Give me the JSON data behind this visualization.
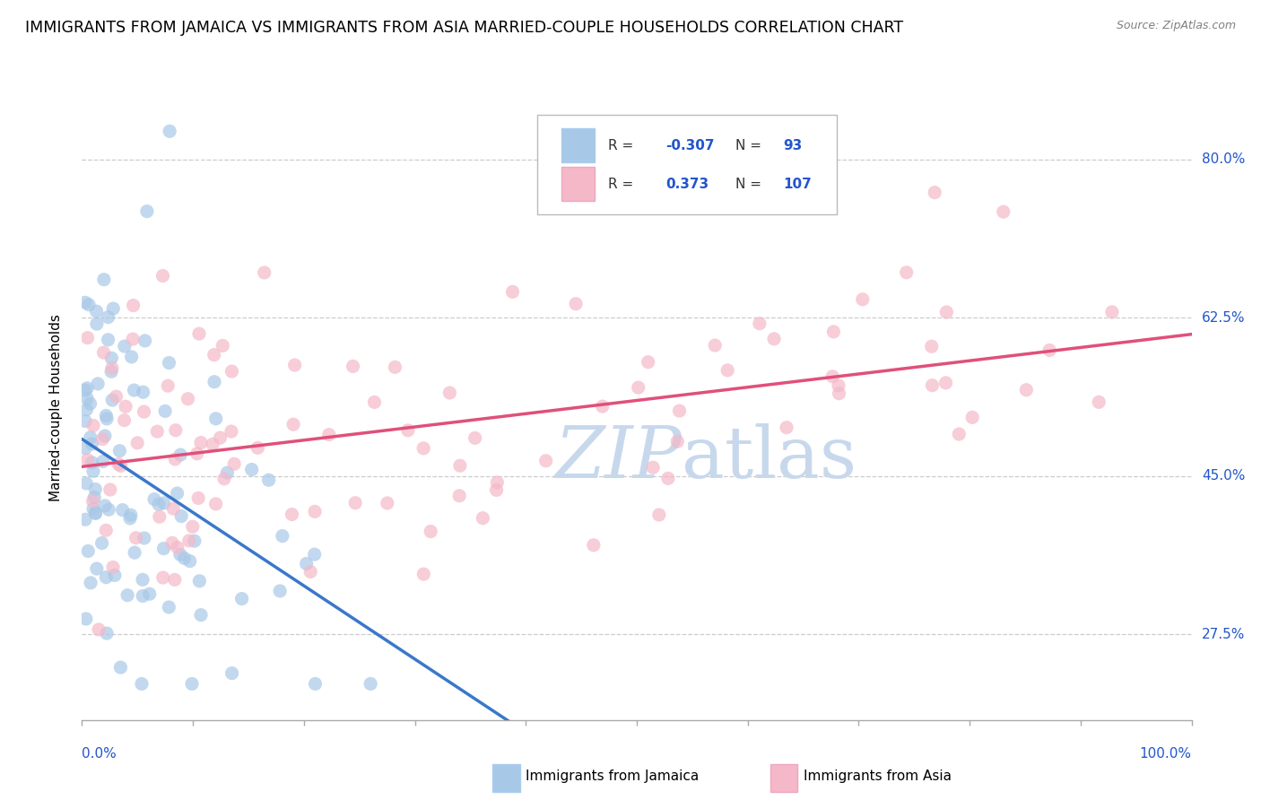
{
  "title": "IMMIGRANTS FROM JAMAICA VS IMMIGRANTS FROM ASIA MARRIED-COUPLE HOUSEHOLDS CORRELATION CHART",
  "source": "Source: ZipAtlas.com",
  "ylabel": "Married-couple Households",
  "y_ticks": [
    27.5,
    45.0,
    62.5,
    80.0
  ],
  "y_tick_labels": [
    "27.5%",
    "45.0%",
    "62.5%",
    "80.0%"
  ],
  "xmin": 0.0,
  "xmax": 100.0,
  "ymin": 18.0,
  "ymax": 87.0,
  "r_blue": -0.307,
  "n_blue": 93,
  "r_pink": 0.373,
  "n_pink": 107,
  "color_jamaica_fill": "#A8C8E8",
  "color_jamaica_edge": "#7AAED4",
  "color_asia_fill": "#F4B8C8",
  "color_asia_edge": "#E890A8",
  "color_line_jamaica": "#3A78C9",
  "color_line_asia": "#E0507A",
  "color_dashed": "#A8C8E8",
  "legend_r_color": "#2255CC",
  "legend_n_color": "#2255CC",
  "title_fontsize": 12.5,
  "axis_label_fontsize": 11,
  "tick_fontsize": 11,
  "watermark": "ZIPAtlas",
  "watermark_color": "#C8D8EC",
  "source_color": "#808080"
}
